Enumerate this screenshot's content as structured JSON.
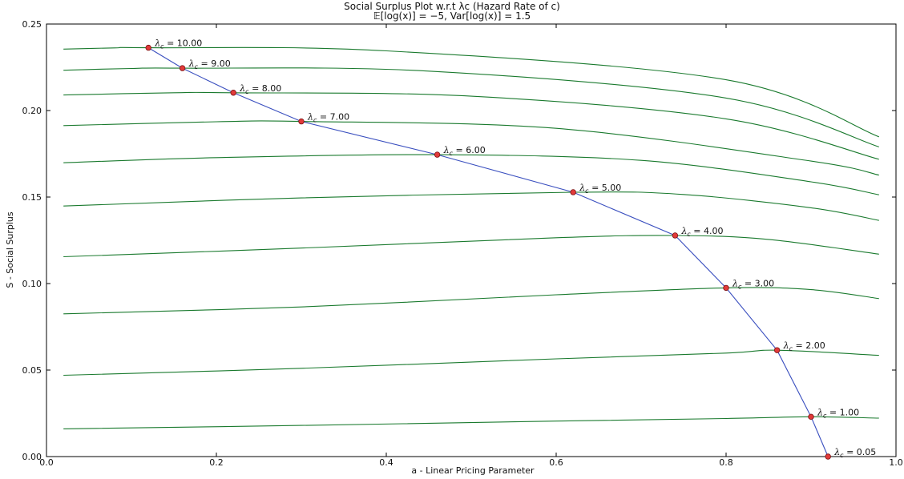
{
  "chart_data": {
    "type": "line",
    "title": "Social Surplus Plot w.r.t λc (Hazard Rate of c)",
    "subtitle": "𝔼[log(x)] = −5, Var[log(x)] = 1.5",
    "xlabel": "a - Linear Pricing Parameter",
    "ylabel": "S - Social Surplus",
    "xlim": [
      0.0,
      1.0
    ],
    "ylim": [
      0.0,
      0.25
    ],
    "x_ticks": [
      "0.0",
      "0.2",
      "0.4",
      "0.6",
      "0.8",
      "1.0"
    ],
    "y_ticks": [
      "0.00",
      "0.05",
      "0.10",
      "0.15",
      "0.20",
      "0.25"
    ],
    "grid": false,
    "colors": {
      "curves": "#1a7a2e",
      "optimum_line": "#3a4fbf",
      "marker_fill": "#e23a3a",
      "marker_edge": "#7a1010"
    },
    "curves": [
      {
        "lambda": "1.00",
        "x": [
          0.02,
          0.3,
          0.6,
          0.8,
          0.9,
          0.98
        ],
        "y": [
          0.016,
          0.018,
          0.0205,
          0.022,
          0.023,
          0.0222
        ]
      },
      {
        "lambda": "2.00",
        "x": [
          0.02,
          0.3,
          0.6,
          0.8,
          0.86,
          0.98
        ],
        "y": [
          0.047,
          0.051,
          0.0565,
          0.0598,
          0.0615,
          0.0585
        ]
      },
      {
        "lambda": "3.00",
        "x": [
          0.02,
          0.3,
          0.6,
          0.8,
          0.9,
          0.98
        ],
        "y": [
          0.0825,
          0.0865,
          0.0935,
          0.0975,
          0.0965,
          0.0913
        ]
      },
      {
        "lambda": "4.00",
        "x": [
          0.02,
          0.3,
          0.6,
          0.74,
          0.85,
          0.98
        ],
        "y": [
          0.1155,
          0.1205,
          0.1265,
          0.1278,
          0.1255,
          0.117
        ]
      },
      {
        "lambda": "5.00",
        "x": [
          0.02,
          0.3,
          0.62,
          0.75,
          0.9,
          0.98
        ],
        "y": [
          0.1448,
          0.1495,
          0.1528,
          0.1515,
          0.1438,
          0.1365
        ]
      },
      {
        "lambda": "6.00",
        "x": [
          0.02,
          0.2,
          0.46,
          0.7,
          0.9,
          0.98
        ],
        "y": [
          0.1698,
          0.1728,
          0.1745,
          0.1712,
          0.1588,
          0.1513
        ]
      },
      {
        "lambda": "7.00",
        "x": [
          0.02,
          0.2,
          0.3,
          0.6,
          0.9,
          0.98
        ],
        "y": [
          0.1913,
          0.1935,
          0.1937,
          0.1897,
          0.1708,
          0.1627
        ]
      },
      {
        "lambda": "8.00",
        "x": [
          0.02,
          0.15,
          0.22,
          0.5,
          0.8,
          0.98
        ],
        "y": [
          0.209,
          0.2103,
          0.2103,
          0.2083,
          0.1952,
          0.1718
        ]
      },
      {
        "lambda": "9.00",
        "x": [
          0.02,
          0.1,
          0.16,
          0.45,
          0.8,
          0.98
        ],
        "y": [
          0.2233,
          0.2243,
          0.2245,
          0.2228,
          0.2072,
          0.179
        ]
      },
      {
        "lambda": "10.00",
        "x": [
          0.02,
          0.08,
          0.12,
          0.4,
          0.8,
          0.98
        ],
        "y": [
          0.2355,
          0.2362,
          0.2363,
          0.2345,
          0.2178,
          0.1848
        ]
      }
    ],
    "optimum_points": [
      {
        "lambda": "10.00",
        "x": 0.12,
        "y": 0.2363
      },
      {
        "lambda": "9.00",
        "x": 0.16,
        "y": 0.2245
      },
      {
        "lambda": "8.00",
        "x": 0.22,
        "y": 0.2103
      },
      {
        "lambda": "7.00",
        "x": 0.3,
        "y": 0.1937
      },
      {
        "lambda": "6.00",
        "x": 0.46,
        "y": 0.1745
      },
      {
        "lambda": "5.00",
        "x": 0.62,
        "y": 0.1528
      },
      {
        "lambda": "4.00",
        "x": 0.74,
        "y": 0.1278
      },
      {
        "lambda": "3.00",
        "x": 0.8,
        "y": 0.0975
      },
      {
        "lambda": "2.00",
        "x": 0.86,
        "y": 0.0615
      },
      {
        "lambda": "1.00",
        "x": 0.9,
        "y": 0.023
      },
      {
        "lambda": "0.05",
        "x": 0.92,
        "y": 0.0
      }
    ],
    "annotation_prefix": "λc = "
  }
}
